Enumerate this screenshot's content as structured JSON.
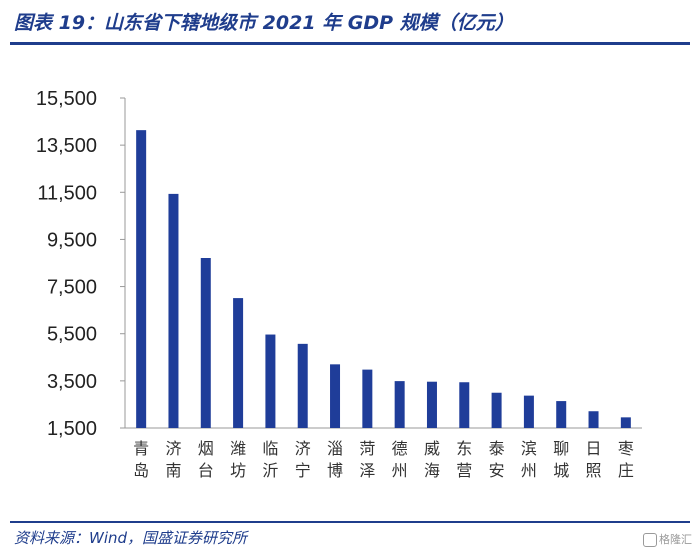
{
  "header": {
    "title": "图表 19：山东省下辖地级市 2021 年 GDP 规模（亿元）"
  },
  "footer": {
    "source": "资料来源：Wind，国盛证券研究所",
    "watermark": "格隆汇"
  },
  "colors": {
    "bar": "#1f3d99",
    "accent": "#1f3d8c",
    "axis": "#999999"
  },
  "chart_data": {
    "type": "bar",
    "title": "山东省下辖地级市 2021 年 GDP 规模（亿元）",
    "xlabel": "",
    "ylabel": "",
    "categories": [
      "青岛",
      "济南",
      "烟台",
      "潍坊",
      "临沂",
      "济宁",
      "淄博",
      "菏泽",
      "德州",
      "威海",
      "东营",
      "泰安",
      "滨州",
      "聊城",
      "日照",
      "枣庄"
    ],
    "values": [
      14136,
      11432,
      8712,
      7011,
      5465,
      5070,
      4201,
      3977,
      3489,
      3464,
      3441,
      2996,
      2873,
      2642,
      2211,
      1952
    ],
    "ylim": [
      1500,
      15500
    ],
    "yticks": [
      1500,
      3500,
      5500,
      7500,
      9500,
      11500,
      13500,
      15500
    ],
    "ytick_labels": [
      "1,500",
      "3,500",
      "5,500",
      "7,500",
      "9,500",
      "11,500",
      "13,500",
      "15,500"
    ],
    "grid": false,
    "legend": "none"
  }
}
